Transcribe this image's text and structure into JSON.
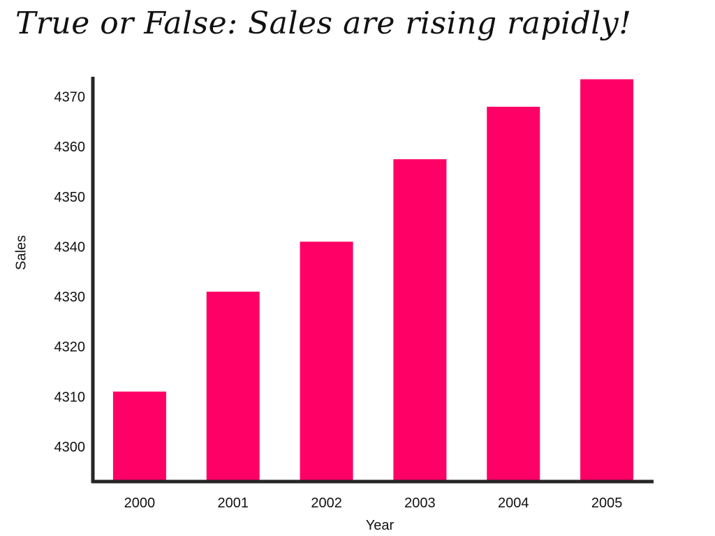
{
  "chart_data": {
    "type": "bar",
    "title": "True or False: Sales are rising rapidly!",
    "xlabel": "Year",
    "ylabel": "Sales",
    "categories": [
      "2000",
      "2001",
      "2002",
      "2003",
      "2004",
      "2005"
    ],
    "values": [
      4311,
      4331,
      4341,
      4357.5,
      4368,
      4373.5
    ],
    "yticks": [
      4300,
      4310,
      4320,
      4330,
      4340,
      4350,
      4360,
      4370
    ],
    "ylim": [
      4293,
      4374
    ],
    "grid": false,
    "legend": "none",
    "bar_color": "#FF0066",
    "axis_color": "#262626"
  }
}
